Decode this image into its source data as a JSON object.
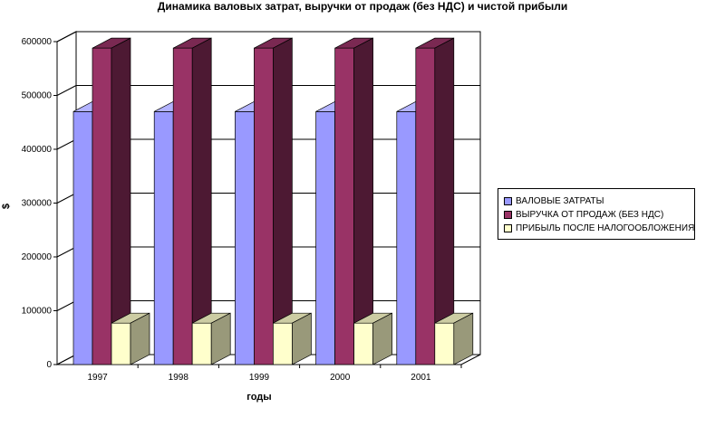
{
  "chart_data": {
    "type": "bar",
    "title": "Динамика валовых затрат, выручки от продаж (без НДС) и чистой прибыли",
    "xlabel": "годы",
    "ylabel": "$",
    "categories": [
      "1997",
      "1998",
      "1999",
      "2000",
      "2001"
    ],
    "ylim": [
      0,
      600000
    ],
    "yticks": [
      "0",
      "100000",
      "200000",
      "300000",
      "400000",
      "500000",
      "600000"
    ],
    "grid": true,
    "legend_position": "right",
    "series": [
      {
        "name": "ВАЛОВЫЕ ЗАТРАТЫ",
        "values": [
          470000,
          470000,
          470000,
          470000,
          470000
        ],
        "color": "#9999ff",
        "side": "#6666cc",
        "top": "#b3b3ff"
      },
      {
        "name": "ВЫРУЧКА ОТ ПРОДАЖ (БЕЗ НДС)",
        "values": [
          588000,
          588000,
          588000,
          588000,
          588000
        ],
        "color": "#993366",
        "side": "#4d1933",
        "top": "#7a2952"
      },
      {
        "name": "ПРИБЫЛЬ ПОСЛЕ НАЛОГООБЛОЖЕНИЯ",
        "values": [
          77000,
          77000,
          77000,
          77000,
          77000
        ],
        "color": "#ffffcc",
        "side": "#99997a",
        "top": "#cccca3"
      }
    ]
  }
}
